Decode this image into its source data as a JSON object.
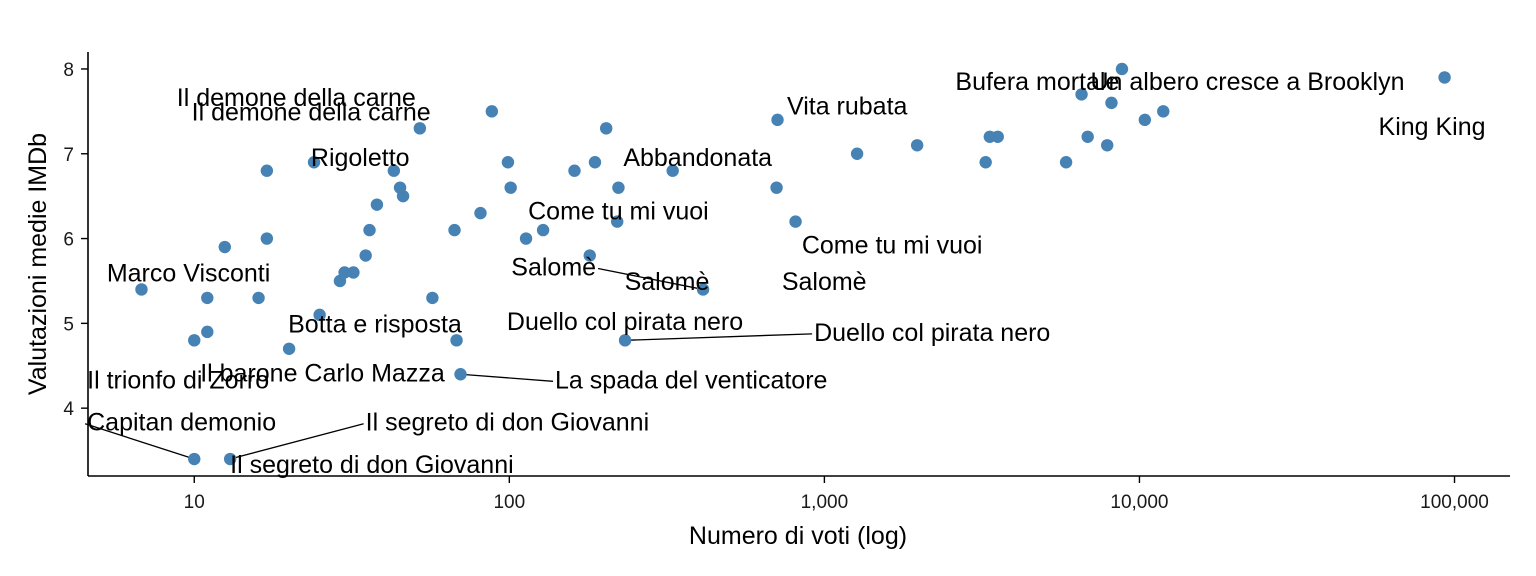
{
  "chart_data": {
    "type": "scatter",
    "xscale": "log10",
    "xlabel": "Numero di voti (log)",
    "ylabel": "Valutazioni medie IMDb",
    "xlim": [
      4.6,
      150000
    ],
    "ylim": [
      3.2,
      8.2
    ],
    "xticks": [
      10,
      100,
      1000,
      10000,
      100000
    ],
    "xtick_labels": [
      "10",
      "100",
      "1,000",
      "10,000",
      "100,000"
    ],
    "yticks": [
      4,
      5,
      6,
      7,
      8
    ],
    "ytick_labels": [
      "4",
      "5",
      "6",
      "7",
      "8"
    ],
    "point_color": "#4682B4",
    "points": [
      {
        "x": 6.8,
        "y": 5.4
      },
      {
        "x": 10,
        "y": 4.8
      },
      {
        "x": 10,
        "y": 3.4
      },
      {
        "x": 11,
        "y": 5.3
      },
      {
        "x": 11,
        "y": 4.9
      },
      {
        "x": 12.5,
        "y": 5.9
      },
      {
        "x": 13,
        "y": 3.4
      },
      {
        "x": 16,
        "y": 5.3
      },
      {
        "x": 17,
        "y": 6.8
      },
      {
        "x": 17,
        "y": 6.0
      },
      {
        "x": 20,
        "y": 4.7
      },
      {
        "x": 24,
        "y": 6.9
      },
      {
        "x": 25,
        "y": 5.1
      },
      {
        "x": 29,
        "y": 5.5
      },
      {
        "x": 30,
        "y": 5.6
      },
      {
        "x": 32,
        "y": 5.6
      },
      {
        "x": 35,
        "y": 5.8
      },
      {
        "x": 36,
        "y": 6.1
      },
      {
        "x": 38,
        "y": 6.4
      },
      {
        "x": 43,
        "y": 6.8
      },
      {
        "x": 45,
        "y": 6.6
      },
      {
        "x": 46,
        "y": 6.5
      },
      {
        "x": 52,
        "y": 7.3
      },
      {
        "x": 57,
        "y": 5.3
      },
      {
        "x": 67,
        "y": 6.1
      },
      {
        "x": 68,
        "y": 4.8
      },
      {
        "x": 70,
        "y": 4.4
      },
      {
        "x": 81,
        "y": 6.3
      },
      {
        "x": 88,
        "y": 7.5
      },
      {
        "x": 99,
        "y": 6.9
      },
      {
        "x": 101,
        "y": 6.6
      },
      {
        "x": 113,
        "y": 6.0
      },
      {
        "x": 128,
        "y": 6.1
      },
      {
        "x": 161,
        "y": 6.8
      },
      {
        "x": 180,
        "y": 5.8
      },
      {
        "x": 187,
        "y": 6.9
      },
      {
        "x": 203,
        "y": 7.3
      },
      {
        "x": 220,
        "y": 6.2
      },
      {
        "x": 222,
        "y": 6.6
      },
      {
        "x": 233,
        "y": 4.8
      },
      {
        "x": 330,
        "y": 6.8
      },
      {
        "x": 412,
        "y": 5.4
      },
      {
        "x": 705,
        "y": 6.6
      },
      {
        "x": 710,
        "y": 7.4
      },
      {
        "x": 810,
        "y": 6.2
      },
      {
        "x": 1270,
        "y": 7.0
      },
      {
        "x": 1970,
        "y": 7.1
      },
      {
        "x": 3250,
        "y": 6.9
      },
      {
        "x": 3350,
        "y": 7.2
      },
      {
        "x": 3550,
        "y": 7.2
      },
      {
        "x": 5850,
        "y": 6.9
      },
      {
        "x": 6550,
        "y": 7.7
      },
      {
        "x": 6850,
        "y": 7.2
      },
      {
        "x": 7900,
        "y": 7.1
      },
      {
        "x": 8150,
        "y": 7.6
      },
      {
        "x": 8800,
        "y": 8.0
      },
      {
        "x": 10400,
        "y": 7.4
      },
      {
        "x": 11900,
        "y": 7.5
      },
      {
        "x": 93000,
        "y": 7.9
      }
    ],
    "annotations": [
      {
        "text": "Il demone della carne",
        "x": 23.5,
        "y": 7.5,
        "anchor": "middle"
      },
      {
        "text": "Il demone della carne",
        "x": 88,
        "y": 7.67,
        "anchor": "start",
        "dx": -1.0
      },
      {
        "text": "Vita rubata",
        "x": 710,
        "y": 7.57,
        "anchor": "start",
        "dx": 0.03
      },
      {
        "text": "Bufera mortale",
        "x": 6550,
        "y": 7.86,
        "anchor": "end",
        "dx": 0.12
      },
      {
        "text": "Un albero cresce a Brooklyn",
        "x": 8800,
        "y": 7.86,
        "anchor": "start",
        "dx": -0.1
      },
      {
        "text": "King King",
        "x": 93000,
        "y": 7.33,
        "anchor": "end",
        "dx": 0.13
      },
      {
        "text": "Rigoletto",
        "x": 24,
        "y": 6.96,
        "anchor": "start",
        "dx": -0.01
      },
      {
        "text": "Abbandonata",
        "x": 187,
        "y": 6.96,
        "anchor": "start",
        "dx": 0.09
      },
      {
        "text": "Come tu mi vuoi",
        "x": 222,
        "y": 6.33,
        "anchor": "middle"
      },
      {
        "text": "Come tu mi vuoi",
        "x": 810,
        "y": 5.93,
        "anchor": "start",
        "dx": 0.02
      },
      {
        "text": "Marco Visconti",
        "x": 6.8,
        "y": 5.6,
        "anchor": "start",
        "dx": -0.11
      },
      {
        "text": "Salomè",
        "x": 180,
        "y": 5.67,
        "anchor": "end",
        "dx": 0.02,
        "leader_to": [
          412,
          5.4
        ]
      },
      {
        "text": "Salomè",
        "x": 412,
        "y": 5.5,
        "anchor": "end",
        "dx": 0.02
      },
      {
        "text": "Salomè",
        "x": 412,
        "y": 5.5,
        "anchor": "start",
        "dx": 0.25
      },
      {
        "text": "Botta e risposta",
        "x": 25,
        "y": 5.0,
        "anchor": "start",
        "dx": -0.1
      },
      {
        "text": "Duello col pirata nero",
        "x": 233,
        "y": 5.03,
        "anchor": "middle"
      },
      {
        "text": "Duello col pirata nero",
        "x": 233,
        "y": 4.9,
        "anchor": "start",
        "dx": 0.6,
        "leader_to": [
          233,
          4.8
        ]
      },
      {
        "text": "Il trionfo di Zorro",
        "x": 10,
        "y": 4.34,
        "anchor": "start",
        "dx": -0.34
      },
      {
        "text": "Il barone Carlo Mazza",
        "x": 70,
        "y": 4.42,
        "anchor": "end",
        "dx": -0.05
      },
      {
        "text": "La spada del venticatore",
        "x": 70,
        "y": 4.34,
        "anchor": "start",
        "dx": 0.3,
        "leader_to": [
          70,
          4.4
        ]
      },
      {
        "text": "Capitan demonio",
        "x": 10,
        "y": 3.84,
        "anchor": "start",
        "dx": -0.34,
        "leader_to": [
          10,
          3.4
        ]
      },
      {
        "text": "Il segreto di don Giovanni",
        "x": 13,
        "y": 3.84,
        "anchor": "start",
        "dx": 0.43,
        "leader_to": [
          13,
          3.4
        ]
      },
      {
        "text": "Il segreto di don Giovanni",
        "x": 13,
        "y": 3.34,
        "anchor": "start",
        "dx": 0.0
      }
    ]
  }
}
